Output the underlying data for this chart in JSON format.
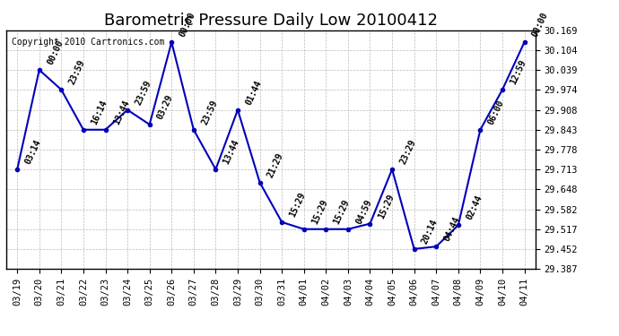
{
  "title": "Barometric Pressure Daily Low 20100412",
  "copyright": "Copyright 2010 Cartronics.com",
  "x_labels": [
    "03/19",
    "03/20",
    "03/21",
    "03/22",
    "03/23",
    "03/24",
    "03/25",
    "03/26",
    "03/27",
    "03/28",
    "03/29",
    "03/30",
    "03/31",
    "04/01",
    "04/02",
    "04/03",
    "04/04",
    "04/05",
    "04/06",
    "04/07",
    "04/08",
    "04/09",
    "04/10",
    "04/11"
  ],
  "y_values": [
    29.713,
    30.039,
    29.974,
    29.843,
    29.843,
    29.908,
    29.86,
    30.13,
    29.843,
    29.713,
    29.908,
    29.67,
    29.54,
    29.517,
    29.517,
    29.517,
    29.535,
    29.713,
    29.452,
    29.46,
    29.53,
    29.843,
    29.974,
    30.13
  ],
  "point_labels": [
    "03:14",
    "00:00",
    "23:59",
    "16:14",
    "13:44",
    "23:59",
    "03:29",
    "00:00",
    "23:59",
    "13:44",
    "01:44",
    "21:29",
    "15:29",
    "15:29",
    "15:29",
    "04:59",
    "15:29",
    "23:29",
    "20:14",
    "04:44",
    "02:44",
    "06:00",
    "12:59",
    "00:00"
  ],
  "y_min": 29.387,
  "y_max": 30.169,
  "y_ticks": [
    29.387,
    29.452,
    29.517,
    29.582,
    29.648,
    29.713,
    29.778,
    29.843,
    29.908,
    29.974,
    30.039,
    30.104,
    30.169
  ],
  "line_color": "#0000bb",
  "marker_color": "#0000bb",
  "bg_color": "#ffffff",
  "grid_color": "#bbbbbb",
  "title_fontsize": 13,
  "label_fontsize": 7,
  "tick_fontsize": 7.5,
  "copyright_fontsize": 7
}
